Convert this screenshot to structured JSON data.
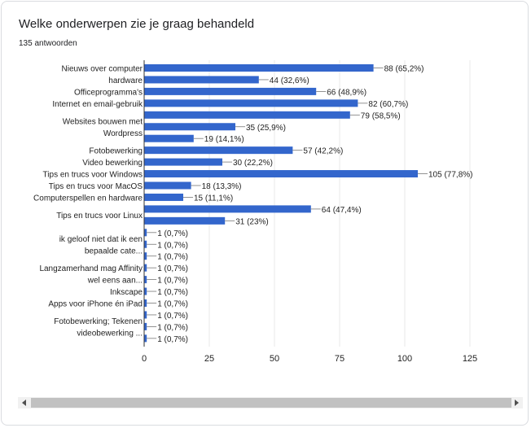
{
  "header": {
    "title": "Welke onderwerpen zie je graag behandeld",
    "responses": "135 antwoorden"
  },
  "colors": {
    "bar": "#3366cc",
    "grid": "#e8e8e8",
    "axis": "#333333",
    "text": "#222222"
  },
  "chart_data": {
    "type": "bar",
    "orientation": "horizontal",
    "title": "",
    "xlabel": "",
    "ylabel": "",
    "xlim": [
      0,
      125
    ],
    "xticks": [
      "0",
      "25",
      "50",
      "75",
      "100",
      "125"
    ],
    "grid": true,
    "categories": [
      {
        "label_lines": [
          "Nieuws over computer",
          "hardware"
        ],
        "values": [
          88,
          44
        ],
        "value_labels": [
          "88 (65,2%)",
          "44 (32,6%)"
        ]
      },
      {
        "label_lines": [
          "Officeprogramma's"
        ],
        "values": [
          66
        ],
        "value_labels": [
          "66 (48,9%)"
        ]
      },
      {
        "label_lines": [
          "Internet en email-gebruik"
        ],
        "values": [
          82
        ],
        "value_labels": [
          "82 (60,7%)"
        ]
      },
      {
        "label_lines": [
          "Websites bouwen met",
          "Wordpress"
        ],
        "values": [
          79,
          35,
          19
        ],
        "value_labels": [
          "79 (58,5%)",
          "35 (25,9%)",
          "19 (14,1%)"
        ]
      },
      {
        "label_lines": [
          "Fotobewerking"
        ],
        "values": [
          57
        ],
        "value_labels": [
          "57 (42,2%)"
        ]
      },
      {
        "label_lines": [
          "Video bewerking"
        ],
        "values": [
          30
        ],
        "value_labels": [
          "30 (22,2%)"
        ]
      },
      {
        "label_lines": [
          "Tips en trucs voor Windows"
        ],
        "values": [
          105
        ],
        "value_labels": [
          "105 (77,8%)"
        ]
      },
      {
        "label_lines": [
          "Tips en trucs voor MacOS"
        ],
        "values": [
          18
        ],
        "value_labels": [
          "18 (13,3%)"
        ]
      },
      {
        "label_lines": [
          "Computerspellen en hardware"
        ],
        "values": [
          15
        ],
        "value_labels": [
          "15 (11,1%)"
        ]
      },
      {
        "label_lines": [
          "Tips en trucs voor Linux"
        ],
        "values": [
          64,
          31
        ],
        "value_labels": [
          "64 (47,4%)",
          "31 (23%)"
        ]
      },
      {
        "label_lines": [
          "ik geloof niet dat ik een",
          "bepaalde cate..."
        ],
        "values": [
          1,
          1,
          1
        ],
        "value_labels": [
          "1 (0,7%)",
          "1 (0,7%)",
          "1 (0,7%)"
        ]
      },
      {
        "label_lines": [
          "Langzamerhand mag Affinity",
          "wel eens aan..."
        ],
        "values": [
          1,
          1
        ],
        "value_labels": [
          "1 (0,7%)",
          "1 (0,7%)"
        ]
      },
      {
        "label_lines": [
          "Inkscape"
        ],
        "values": [
          1
        ],
        "value_labels": [
          "1 (0,7%)"
        ]
      },
      {
        "label_lines": [
          "Apps voor iPhone én iPad"
        ],
        "values": [
          1
        ],
        "value_labels": [
          "1 (0,7%)"
        ]
      },
      {
        "label_lines": [
          "Fotobewerking; Tekenen",
          "videobewerking ..."
        ],
        "values": [
          1,
          1,
          1
        ],
        "value_labels": [
          "1 (0,7%)",
          "1 (0,7%)",
          "1 (0,7%)"
        ]
      }
    ]
  }
}
